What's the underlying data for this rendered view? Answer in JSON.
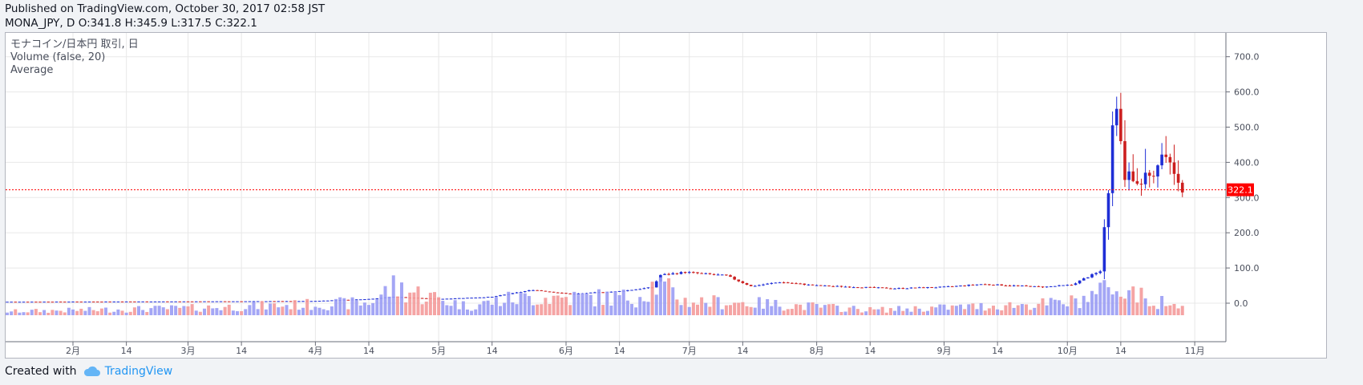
{
  "header": {
    "published": "Published on TradingView.com, October 30, 2017 02:58 JST",
    "ohlc": "MONA_JPY, D O:341.8 H:345.9 L:317.5 C:322.1"
  },
  "legend": {
    "symbol": "モナコイン/日本円 取引, 日",
    "volume": "Volume (false, 20)",
    "average": "Average"
  },
  "footer": {
    "created_with": "Created with",
    "brand": "TradingView"
  },
  "colors": {
    "up": "#1e2ed6",
    "down": "#cc1f1f",
    "vol_up": "#9a9cf4",
    "vol_down": "#f49a9a",
    "last_price": "#ff0000",
    "grid": "#e8e8e8"
  },
  "chart_data": {
    "type": "candlestick",
    "ylim": [
      -25,
      745
    ],
    "y_ticks": [
      "0.0",
      "100.0",
      "200.0",
      "300.0",
      "400.0",
      "500.0",
      "600.0",
      "700.0"
    ],
    "x_ticks": [
      "2月",
      "14",
      "3月",
      "14",
      "4月",
      "14",
      "5月",
      "14",
      "6月",
      "14",
      "7月",
      "14",
      "8月",
      "14",
      "9月",
      "14",
      "10月",
      "14",
      "11月"
    ],
    "last_price": 322.1,
    "last_price_label": "322.1",
    "period": {
      "start": "2017-01-13",
      "end": "2017-10-29"
    },
    "price_keypoints": [
      [
        "2017-01-13",
        4
      ],
      [
        "2017-02-28",
        5
      ],
      [
        "2017-03-31",
        6
      ],
      [
        "2017-04-14",
        12
      ],
      [
        "2017-04-20",
        18
      ],
      [
        "2017-05-01",
        12
      ],
      [
        "2017-05-14",
        18
      ],
      [
        "2017-05-24",
        38
      ],
      [
        "2017-06-02",
        26
      ],
      [
        "2017-06-14",
        34
      ],
      [
        "2017-06-22",
        45
      ],
      [
        "2017-06-24",
        80
      ],
      [
        "2017-06-30",
        88
      ],
      [
        "2017-07-10",
        78
      ],
      [
        "2017-07-16",
        48
      ],
      [
        "2017-07-23",
        60
      ],
      [
        "2017-08-01",
        50
      ],
      [
        "2017-08-20",
        42
      ],
      [
        "2017-09-01",
        46
      ],
      [
        "2017-09-10",
        54
      ],
      [
        "2017-09-18",
        50
      ],
      [
        "2017-09-25",
        46
      ],
      [
        "2017-10-02",
        52
      ],
      [
        "2017-10-06",
        75
      ],
      [
        "2017-10-09",
        90
      ],
      [
        "2017-10-10",
        220
      ],
      [
        "2017-10-11",
        320
      ],
      [
        "2017-10-12",
        520
      ],
      [
        "2017-10-13",
        560
      ],
      [
        "2017-10-14",
        470
      ],
      [
        "2017-10-15",
        360
      ],
      [
        "2017-10-16",
        380
      ],
      [
        "2017-10-18",
        330
      ],
      [
        "2017-10-20",
        360
      ],
      [
        "2017-10-22",
        350
      ],
      [
        "2017-10-24",
        420
      ],
      [
        "2017-10-26",
        400
      ],
      [
        "2017-10-28",
        345
      ],
      [
        "2017-10-29",
        322
      ]
    ],
    "volume_keypoints": [
      [
        "2017-01-13",
        0.1
      ],
      [
        "2017-03-01",
        0.2
      ],
      [
        "2017-04-14",
        0.35
      ],
      [
        "2017-04-20",
        0.8
      ],
      [
        "2017-05-08",
        0.25
      ],
      [
        "2017-05-18",
        0.45
      ],
      [
        "2017-05-24",
        0.5
      ],
      [
        "2017-06-18",
        0.5
      ],
      [
        "2017-06-23",
        0.9
      ],
      [
        "2017-06-30",
        0.4
      ],
      [
        "2017-07-15",
        0.35
      ],
      [
        "2017-08-15",
        0.15
      ],
      [
        "2017-09-10",
        0.25
      ],
      [
        "2017-10-01",
        0.35
      ],
      [
        "2017-10-09",
        0.6
      ],
      [
        "2017-10-12",
        1.0
      ],
      [
        "2017-10-16",
        0.6
      ],
      [
        "2017-10-23",
        0.4
      ],
      [
        "2017-10-29",
        0.2
      ]
    ]
  }
}
